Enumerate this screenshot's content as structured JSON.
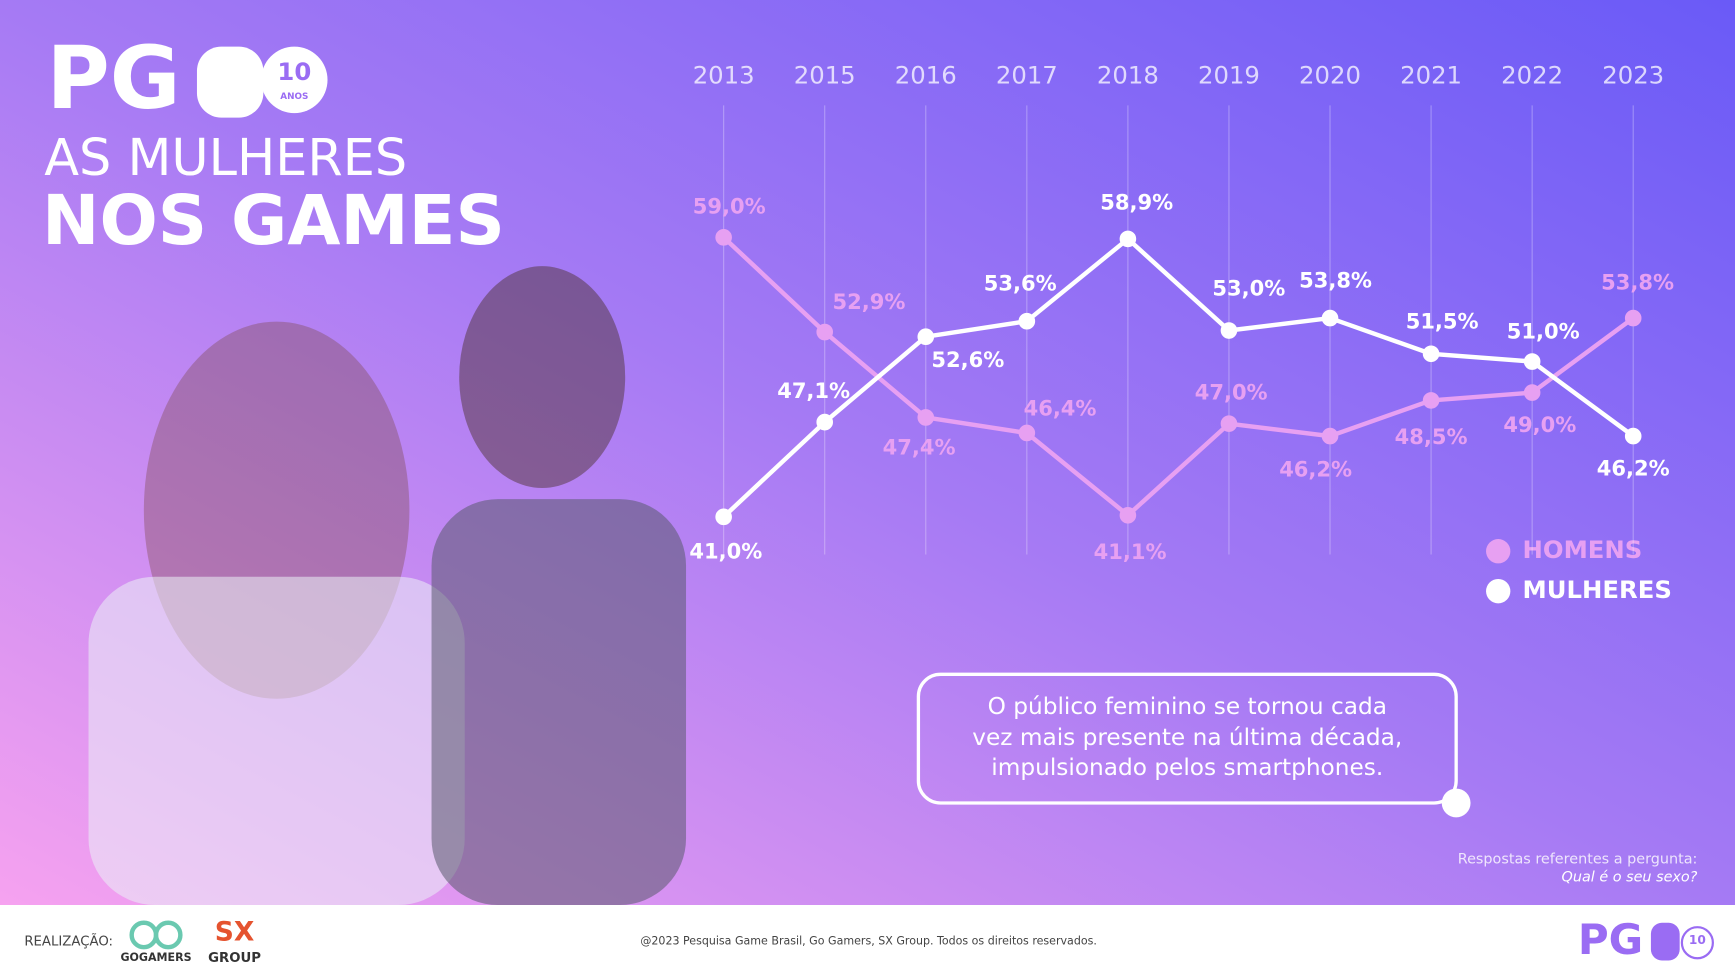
{
  "header": {
    "logo": "PG",
    "badge": "10",
    "badge_sub": "ANOS",
    "title_line1": "AS MULHERES",
    "title_line2": "NOS GAMES"
  },
  "chart_data": {
    "type": "line",
    "categories": [
      "2013",
      "2015",
      "2016",
      "2017",
      "2018",
      "2019",
      "2020",
      "2021",
      "2022",
      "2023"
    ],
    "series": [
      {
        "name": "HOMENS",
        "color": "#e7a0f2",
        "values": [
          59.0,
          52.9,
          47.4,
          46.4,
          41.1,
          47.0,
          46.2,
          48.5,
          49.0,
          53.8
        ],
        "value_labels": [
          "59,0%",
          "52,9%",
          "47,4%",
          "46,4%",
          "41,1%",
          "47,0%",
          "46,2%",
          "48,5%",
          "49,0%",
          "53,8%"
        ]
      },
      {
        "name": "MULHERES",
        "color": "#ffffff",
        "values": [
          41.0,
          47.1,
          52.6,
          53.6,
          58.9,
          53.0,
          53.8,
          51.5,
          51.0,
          46.2
        ],
        "value_labels": [
          "41,0%",
          "47,1%",
          "52,6%",
          "53,6%",
          "58,9%",
          "53,0%",
          "53,8%",
          "51,5%",
          "51,0%",
          "46,2%"
        ]
      }
    ]
  },
  "callout": {
    "lines": [
      "O público feminino se tornou cada",
      "vez mais presente na última década,",
      "impulsionado pelos smartphones."
    ]
  },
  "note": {
    "intro": "Respostas referentes a pergunta:",
    "question": "Qual é o seu sexo?"
  },
  "footer": {
    "credit_label": "REALIZAÇÃO:",
    "partner1": "GOGAMERS",
    "partner2_top": "SX",
    "partner2_bottom": "GROUP",
    "copyright": "@2023 Pesquisa Game Brasil, Go Gamers, SX Group. Todos os direitos reservados.",
    "logo": "PG",
    "badge": "10"
  }
}
